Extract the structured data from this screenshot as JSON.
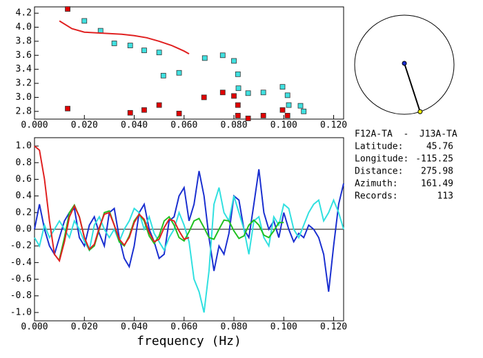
{
  "chart_data": [
    {
      "type": "scatter",
      "xlim": [
        0,
        0.124
      ],
      "ylim": [
        2.69,
        4.29
      ],
      "xticks": [
        {
          "value": 0,
          "label": "0.000"
        },
        {
          "value": 0.02,
          "label": "0.020"
        },
        {
          "value": 0.04,
          "label": "0.040"
        },
        {
          "value": 0.06,
          "label": "0.060"
        },
        {
          "value": 0.08,
          "label": "0.080"
        },
        {
          "value": 0.1,
          "label": "0.100"
        },
        {
          "value": 0.12,
          "label": "0.120"
        }
      ],
      "yticks": [
        2.8,
        {
          "value": 3,
          "label": "3.0"
        },
        3.2,
        3.4,
        3.6,
        3.8,
        {
          "value": 4,
          "label": "4.0"
        },
        4.2
      ],
      "series": [
        {
          "mode": "markers",
          "color": "#e00000",
          "x": [
            0.0133,
            0.0133,
            0.0384,
            0.044,
            0.05,
            0.058,
            0.068,
            0.0755,
            0.08,
            0.0816,
            0.0816,
            0.0857,
            0.0918,
            0.0995,
            0.1015
          ],
          "values": [
            4.26,
            2.84,
            2.78,
            2.82,
            2.89,
            2.77,
            3.0,
            3.07,
            3.02,
            2.89,
            2.74,
            2.7,
            2.74,
            2.82,
            2.74
          ]
        },
        {
          "mode": "markers",
          "color": "#40e0e0",
          "x": [
            0.02,
            0.0265,
            0.032,
            0.0384,
            0.044,
            0.05,
            0.0517,
            0.058,
            0.0683,
            0.0755,
            0.08,
            0.0816,
            0.0818,
            0.0857,
            0.0918,
            0.0995,
            0.1015,
            0.102,
            0.1067,
            0.108
          ],
          "values": [
            4.09,
            3.95,
            3.77,
            3.74,
            3.67,
            3.64,
            3.31,
            3.35,
            3.56,
            3.6,
            3.52,
            3.33,
            3.13,
            3.06,
            3.07,
            3.15,
            3.03,
            2.89,
            2.88,
            2.8
          ]
        },
        {
          "mode": "line",
          "color": "#e02020",
          "x": [
            0.01,
            0.015,
            0.02,
            0.025,
            0.03,
            0.035,
            0.04,
            0.045,
            0.05,
            0.055,
            0.06,
            0.062
          ],
          "values": [
            4.09,
            3.98,
            3.93,
            3.92,
            3.91,
            3.9,
            3.88,
            3.85,
            3.8,
            3.74,
            3.66,
            3.62
          ]
        }
      ]
    },
    {
      "type": "line",
      "x_label": "frequency (Hz)",
      "zero_line": true,
      "xlim": [
        0,
        0.124
      ],
      "ylim": [
        -1.1,
        1.1
      ],
      "xticks": [
        {
          "value": 0,
          "label": "0.000"
        },
        {
          "value": 0.02,
          "label": "0.020"
        },
        {
          "value": 0.04,
          "label": "0.040"
        },
        {
          "value": 0.06,
          "label": "0.060"
        },
        {
          "value": 0.08,
          "label": "0.080"
        },
        {
          "value": 0.1,
          "label": "0.100"
        },
        {
          "value": 0.12,
          "label": "0.120"
        }
      ],
      "yticks": [
        {
          "value": -1,
          "label": "-1.0"
        },
        -0.8,
        -0.6,
        -0.4,
        -0.2,
        {
          "value": 0,
          "label": "0.0"
        },
        0.2,
        0.4,
        0.6,
        0.8,
        {
          "value": 1,
          "label": "1.0"
        }
      ],
      "x": [
        0,
        0.002,
        0.004,
        0.006,
        0.008,
        0.01,
        0.012,
        0.014,
        0.016,
        0.018,
        0.02,
        0.022,
        0.024,
        0.026,
        0.028,
        0.03,
        0.032,
        0.034,
        0.036,
        0.038,
        0.04,
        0.042,
        0.044,
        0.046,
        0.048,
        0.05,
        0.052,
        0.054,
        0.056,
        0.058,
        0.06,
        0.062,
        0.064,
        0.066,
        0.068,
        0.07,
        0.072,
        0.074,
        0.076,
        0.078,
        0.08,
        0.082,
        0.084,
        0.086,
        0.088,
        0.09,
        0.092,
        0.094,
        0.096,
        0.098,
        0.1,
        0.102,
        0.104,
        0.106,
        0.108,
        0.11,
        0.112,
        0.114,
        0.116,
        0.118,
        0.12,
        0.122,
        0.124
      ],
      "series": [
        {
          "color": "#1a2fd0",
          "values": [
            0.0,
            0.3,
            0.0,
            -0.2,
            -0.3,
            -0.1,
            0.1,
            0.2,
            0.25,
            -0.1,
            -0.2,
            0.05,
            0.15,
            -0.05,
            -0.2,
            0.2,
            0.25,
            -0.1,
            -0.35,
            -0.45,
            -0.2,
            0.2,
            0.3,
            0.0,
            -0.15,
            -0.35,
            -0.3,
            0.1,
            0.15,
            0.4,
            0.5,
            0.1,
            0.3,
            0.7,
            0.4,
            -0.1,
            -0.5,
            -0.2,
            -0.3,
            -0.05,
            0.4,
            0.35,
            0.0,
            -0.1,
            0.3,
            0.72,
            0.2,
            0.0,
            0.1,
            -0.1,
            0.2,
            0.0,
            -0.15,
            -0.05,
            -0.1,
            0.05,
            0.0,
            -0.1,
            -0.3,
            -0.75,
            -0.2,
            0.3,
            0.55
          ]
        },
        {
          "color": "#30e0e0",
          "values": [
            -0.1,
            -0.2,
            0.05,
            -0.1,
            0.0,
            0.1,
            0.0,
            -0.1,
            0.1,
            0.0,
            -0.15,
            -0.25,
            0.05,
            0.15,
            0.0,
            -0.1,
            0.0,
            -0.15,
            0.0,
            0.1,
            0.25,
            0.2,
            0.0,
            0.15,
            -0.05,
            -0.15,
            -0.25,
            -0.1,
            0.0,
            0.2,
            0.05,
            -0.15,
            -0.6,
            -0.75,
            -1.0,
            -0.5,
            0.3,
            0.5,
            0.2,
            0.1,
            0.4,
            0.2,
            0.0,
            -0.3,
            0.1,
            0.15,
            -0.1,
            -0.2,
            0.15,
            0.05,
            0.3,
            0.25,
            0.0,
            -0.1,
            0.05,
            0.2,
            0.3,
            0.35,
            0.1,
            0.2,
            0.35,
            0.2,
            0.0
          ]
        },
        {
          "color": "#20c020",
          "values": [
            null,
            null,
            null,
            null,
            null,
            -0.36,
            -0.1,
            0.2,
            0.29,
            0.15,
            -0.1,
            -0.25,
            -0.2,
            0.0,
            0.2,
            0.22,
            0.05,
            -0.15,
            -0.2,
            -0.08,
            0.1,
            0.18,
            0.1,
            -0.08,
            -0.17,
            -0.08,
            0.1,
            0.15,
            0.05,
            -0.1,
            -0.14,
            -0.03,
            0.1,
            0.13,
            0.02,
            -0.1,
            -0.12,
            0.0,
            0.11,
            0.1,
            -0.02,
            -0.11,
            -0.08,
            0.05,
            0.11,
            0.05,
            -0.07,
            -0.1,
            -0.02,
            0.08,
            0.08,
            null,
            null,
            null,
            null,
            null,
            null,
            null,
            null,
            null,
            null,
            null,
            null
          ]
        },
        {
          "color": "#e02020",
          "values": [
            1.0,
            0.95,
            0.6,
            0.1,
            -0.3,
            -0.38,
            -0.15,
            0.15,
            0.28,
            0.15,
            -0.1,
            -0.24,
            -0.18,
            0.02,
            0.18,
            0.2,
            0.05,
            -0.12,
            -0.19,
            -0.1,
            0.08,
            0.18,
            0.12,
            -0.04,
            -0.15,
            -0.12,
            0.02,
            0.12,
            0.1,
            -0.02,
            -0.12,
            -0.1,
            null,
            null,
            null,
            null,
            null,
            null,
            null,
            null,
            null,
            null,
            null,
            null,
            null,
            null,
            null,
            null,
            null,
            null,
            null,
            null,
            null,
            null,
            null,
            null,
            null,
            null,
            null,
            null,
            null,
            null,
            null
          ]
        }
      ]
    }
  ],
  "station": {
    "title": "F12A-TA  -  J13A-TA",
    "rows": [
      {
        "label": "Latitude:",
        "value": 45.76
      },
      {
        "label": "Longitude:",
        "value": -115.25
      },
      {
        "label": "Distance:",
        "value": 275.98
      },
      {
        "label": "Azimuth:",
        "value": 161.49
      },
      {
        "label": "Records:",
        "value": 113
      }
    ]
  }
}
